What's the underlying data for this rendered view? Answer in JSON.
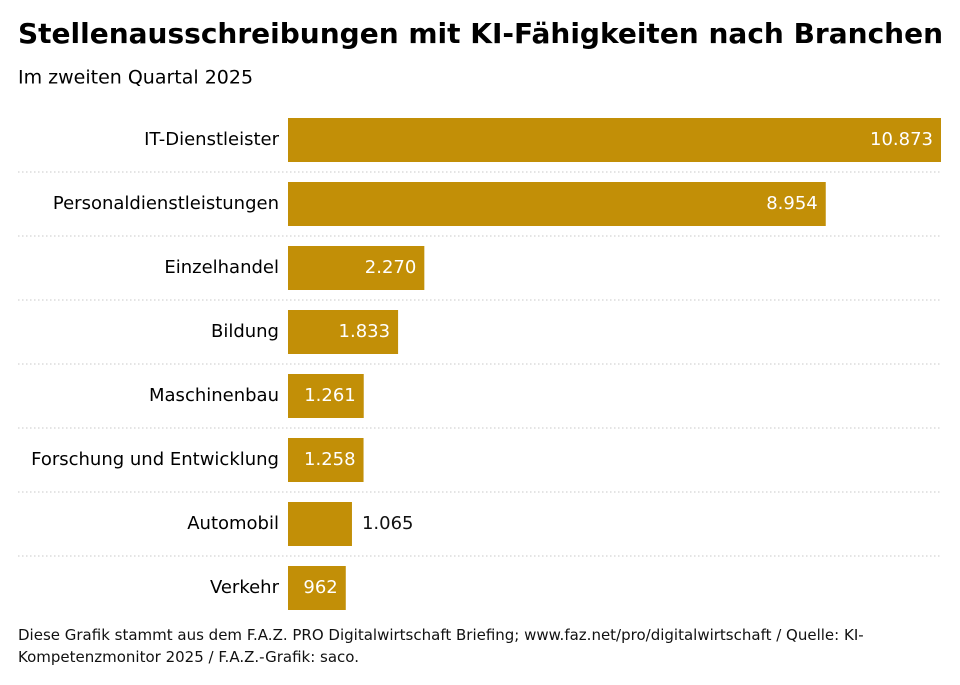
{
  "chart_data": {
    "type": "bar",
    "orientation": "horizontal",
    "title": "Stellenausschreibungen mit KI-Fähigkeiten nach Branchen",
    "subtitle": "Im zweiten Quartal 2025",
    "categories": [
      "IT-Dienstleister",
      "Personaldienstleistungen",
      "Einzelhandel",
      "Bildung",
      "Maschinenbau",
      "Forschung und Entwicklung",
      "Automobil",
      "Verkehr"
    ],
    "values": [
      10873,
      8954,
      2270,
      1833,
      1261,
      1258,
      1065,
      962
    ],
    "value_labels": [
      "10.873",
      "8.954",
      "2.270",
      "1.833",
      "1.261",
      "1.258",
      "1.065",
      "962"
    ],
    "color": "#c28f07",
    "xlim": [
      0,
      10873
    ],
    "note": "Diese Grafik stammt aus dem F.A.Z. PRO Digitalwirtschaft Briefing; www.faz.net/pro/digitalwirtschaft / Quelle: KI-Kompetenzmonitor 2025 / F.A.Z.-Grafik: saco."
  }
}
